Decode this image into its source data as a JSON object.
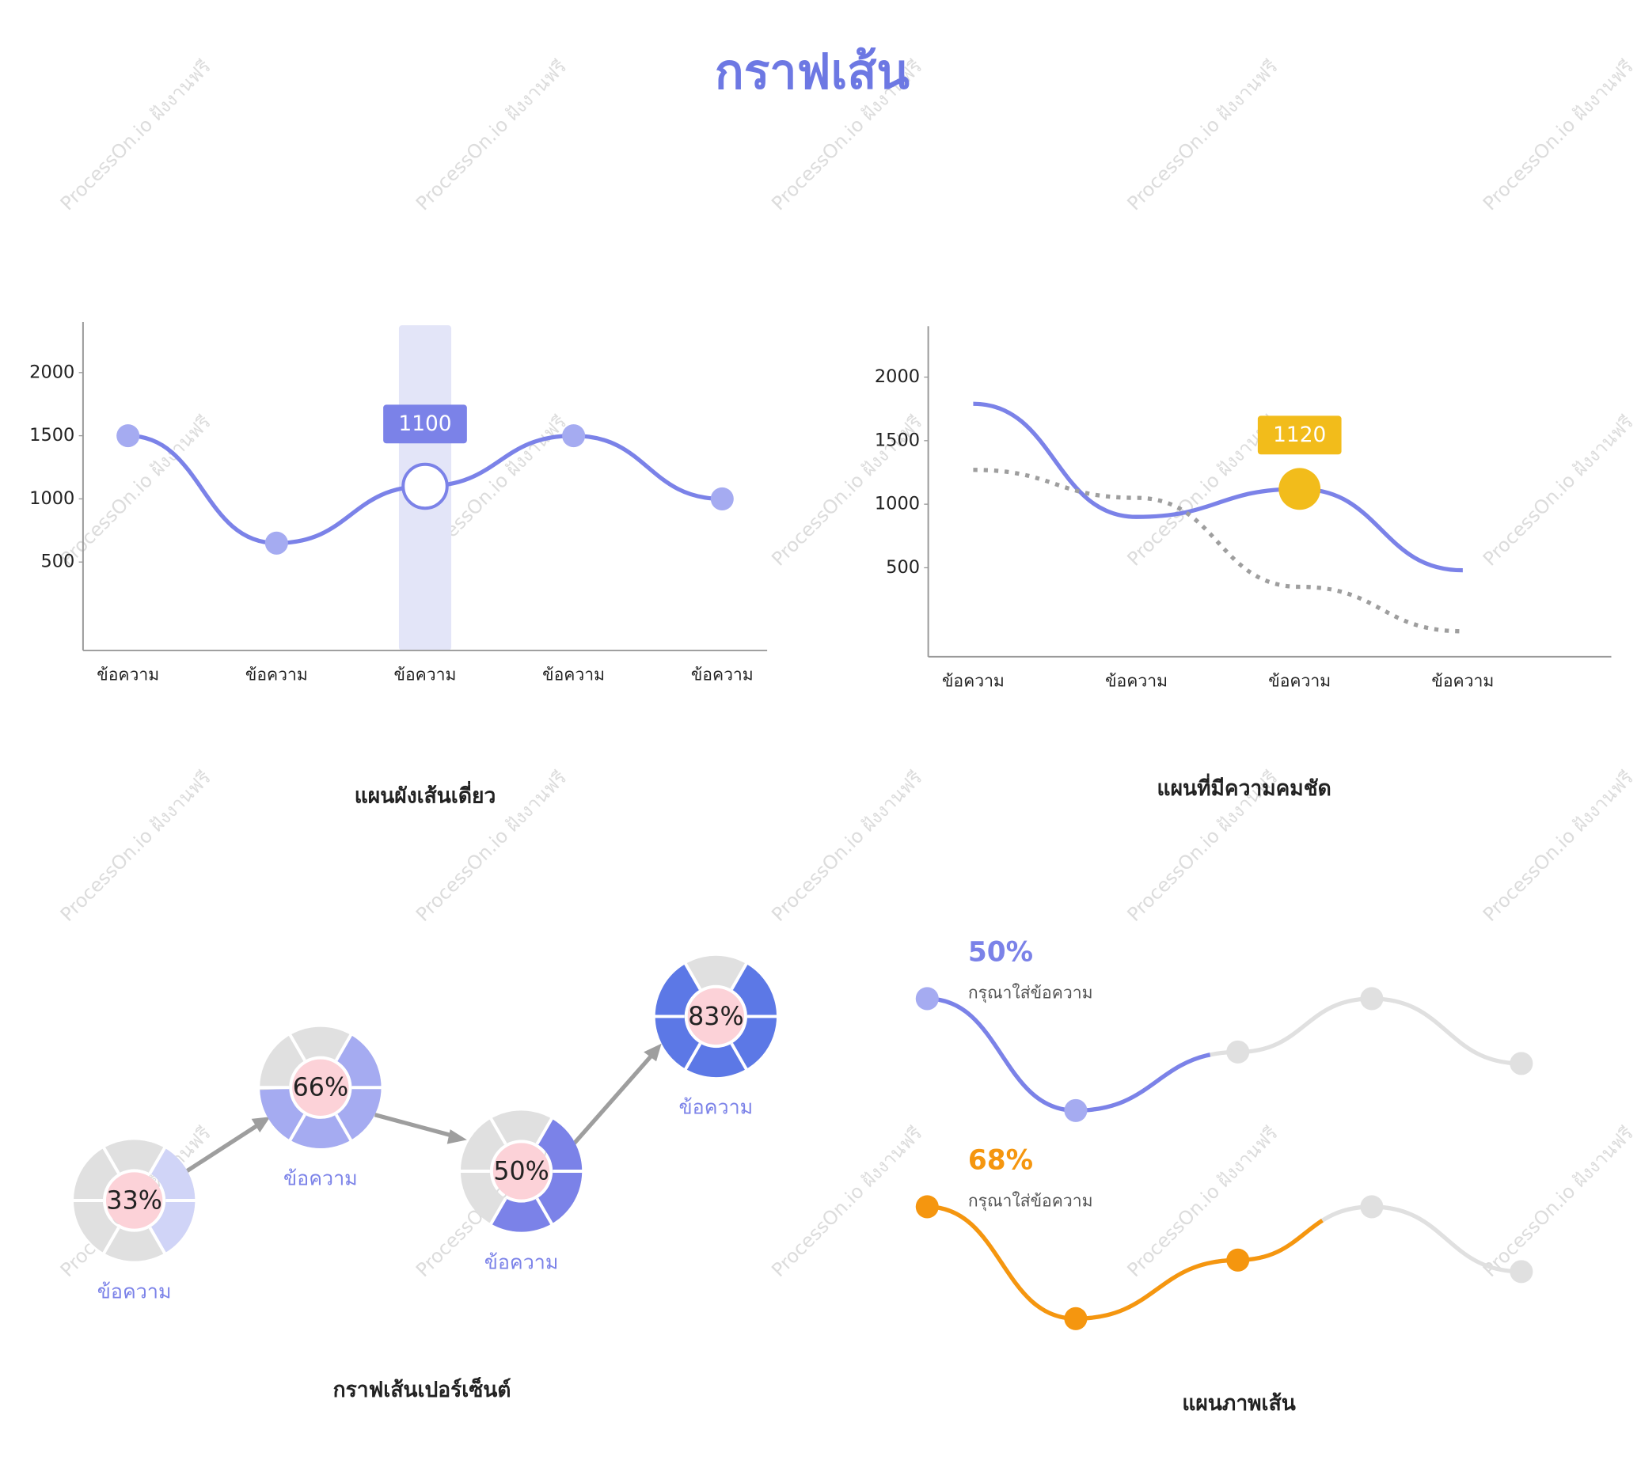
{
  "title": "กราฟเส้น",
  "watermark": "ProcessOn.io ฝังงานฟรี",
  "chart_data": [
    {
      "type": "line",
      "title": "แผนผังเส้นเดี่ยว",
      "categories": [
        "ข้อความ",
        "ข้อความ",
        "ข้อความ",
        "ข้อความ",
        "ข้อความ"
      ],
      "values": [
        1500,
        650,
        1100,
        1500,
        1000
      ],
      "color": "#7b82e8",
      "highlight": 2,
      "ylim": [
        -200,
        2400
      ],
      "yticks": [
        500,
        1000,
        1500,
        2000
      ]
    },
    {
      "type": "multiline",
      "title": "แผนที่มีความคมชัด",
      "categories": [
        "ข้อความ",
        "ข้อความ",
        "ข้อความ",
        "ข้อความ"
      ],
      "series": [
        {
          "color": "#7b82e8",
          "values": [
            1790,
            900,
            1120,
            480
          ]
        },
        {
          "color": "#9e9e9e",
          "dashed": true,
          "values": [
            1270,
            1050,
            350,
            0
          ]
        }
      ],
      "highlight": 2,
      "highlight_color": "#f2bc1b",
      "ylim": [
        -200,
        2400
      ],
      "yticks": [
        500,
        1000,
        1500,
        2000
      ]
    },
    {
      "type": "donut",
      "title": "กราฟเส้นเปอร์เซ็นต์",
      "values": [
        33,
        66,
        50,
        83
      ],
      "value_labels": [
        "33%",
        "66%",
        "50%",
        "83%"
      ],
      "colors": [
        "#d0d4f7",
        "#a5abf1",
        "#7b82e8",
        "#5c78e6"
      ],
      "categories": [
        "ข้อความ",
        "ข้อความ",
        "ข้อความ",
        "ข้อความ"
      ]
    },
    {
      "type": "progress-line",
      "title": "แผนภาพเส้น",
      "series": [
        {
          "color": "#7b82e8",
          "value": 50,
          "value_label": "50%",
          "text": "กรุณาใส่ข้อความ"
        },
        {
          "color": "#f5960f",
          "value": 68,
          "value_label": "68%",
          "text": "กรุณาใส่ข้อความ"
        }
      ]
    }
  ]
}
